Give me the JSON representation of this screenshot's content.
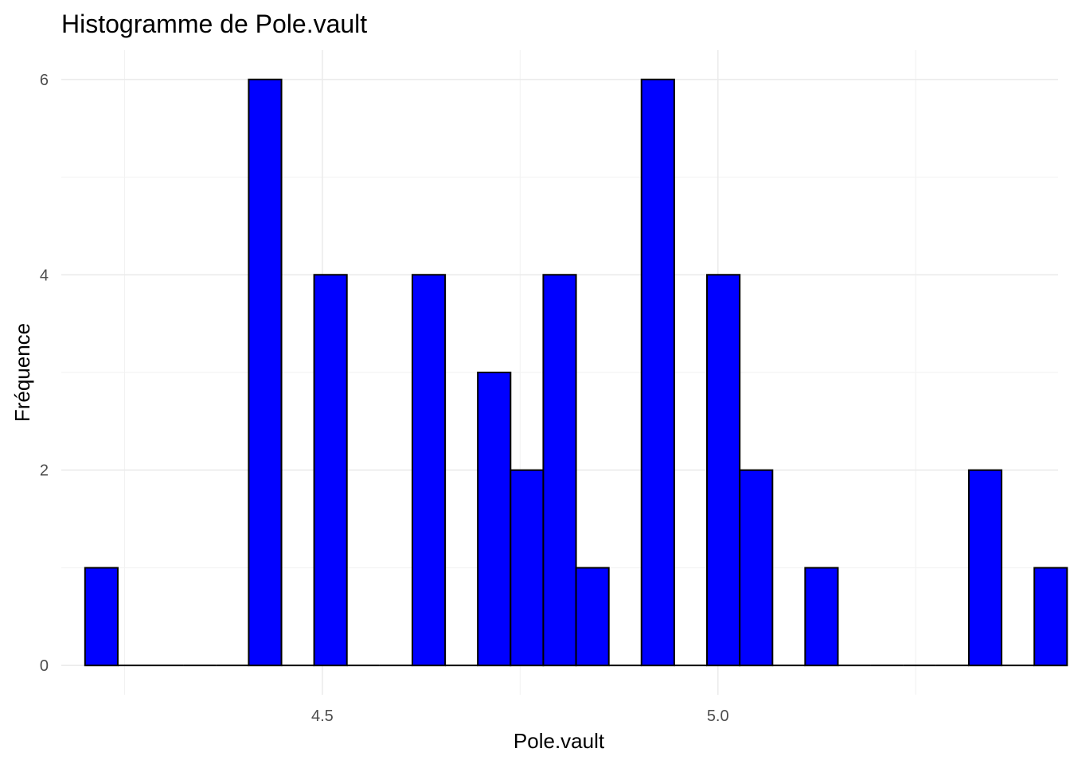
{
  "chart_data": {
    "type": "bar",
    "title": "Histogramme de Pole.vault",
    "xlabel": "Pole.vault",
    "ylabel": "Fréquence",
    "bar_color": "#0000ff",
    "bar_border_color": "#000000",
    "grid": true,
    "xlim": [
      4.17,
      5.43
    ],
    "ylim": [
      -0.3,
      6.3
    ],
    "x_ticks": [
      4.5,
      5.0
    ],
    "x_tick_labels": [
      "4.5",
      "5.0"
    ],
    "x_minor_ticks": [
      4.25,
      4.75,
      5.25
    ],
    "y_ticks": [
      0,
      2,
      4,
      6
    ],
    "y_tick_labels": [
      "0",
      "2",
      "4",
      "6"
    ],
    "y_minor_ticks": [
      1,
      3,
      5
    ],
    "bin_width": 0.0414,
    "bins": [
      {
        "x": 4.2207,
        "count": 1
      },
      {
        "x": 4.2621,
        "count": 0
      },
      {
        "x": 4.3034,
        "count": 0
      },
      {
        "x": 4.3448,
        "count": 0
      },
      {
        "x": 4.3862,
        "count": 0
      },
      {
        "x": 4.4276,
        "count": 6
      },
      {
        "x": 4.469,
        "count": 0
      },
      {
        "x": 4.5103,
        "count": 4
      },
      {
        "x": 4.5517,
        "count": 0
      },
      {
        "x": 4.5931,
        "count": 0
      },
      {
        "x": 4.6345,
        "count": 4
      },
      {
        "x": 4.6759,
        "count": 0
      },
      {
        "x": 4.7172,
        "count": 3
      },
      {
        "x": 4.7586,
        "count": 2
      },
      {
        "x": 4.8,
        "count": 4
      },
      {
        "x": 4.8414,
        "count": 1
      },
      {
        "x": 4.8828,
        "count": 0
      },
      {
        "x": 4.9241,
        "count": 6
      },
      {
        "x": 4.9655,
        "count": 0
      },
      {
        "x": 5.0069,
        "count": 4
      },
      {
        "x": 5.0483,
        "count": 2
      },
      {
        "x": 5.0897,
        "count": 0
      },
      {
        "x": 5.131,
        "count": 1
      },
      {
        "x": 5.1724,
        "count": 0
      },
      {
        "x": 5.2138,
        "count": 0
      },
      {
        "x": 5.2552,
        "count": 0
      },
      {
        "x": 5.2966,
        "count": 0
      },
      {
        "x": 5.3379,
        "count": 2
      },
      {
        "x": 5.3793,
        "count": 0
      },
      {
        "x": 5.4207,
        "count": 1
      }
    ]
  }
}
